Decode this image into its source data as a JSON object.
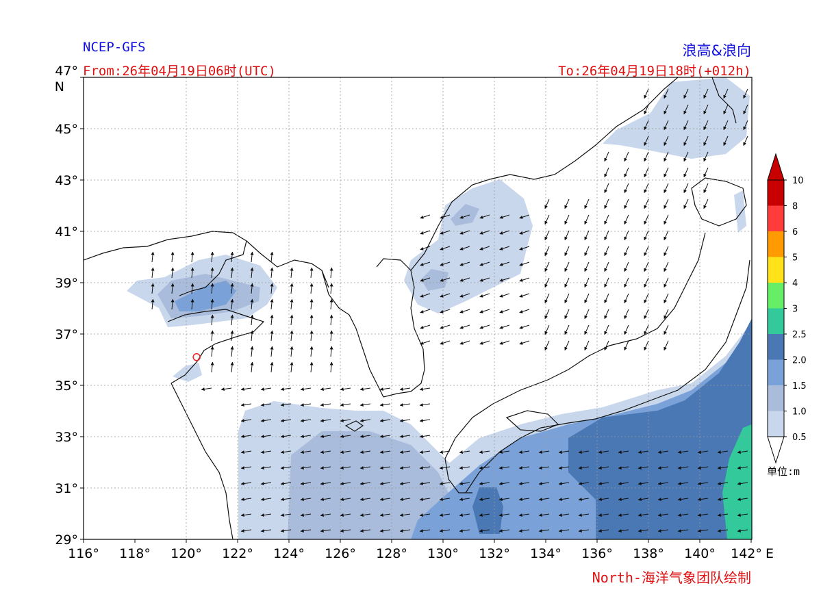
{
  "header": {
    "model": "NCEP-GFS",
    "title": "浪高&浪向",
    "from": "From:26年04月19日06时(UTC)",
    "to": "To:26年04月19日18时(+012h)"
  },
  "footer": {
    "credit": "North-海洋气象团队绘制"
  },
  "lat_ticks": [
    "47°",
    "45°",
    "43°",
    "41°",
    "39°",
    "37°",
    "35°",
    "33°",
    "31°",
    "29°"
  ],
  "lat_unit": "N",
  "lon_ticks": [
    "116°",
    "118°",
    "120°",
    "122°",
    "124°",
    "126°",
    "128°",
    "130°",
    "132°",
    "134°",
    "136°",
    "138°",
    "140°",
    "142°"
  ],
  "lon_unit": "E",
  "colorbar": {
    "unit_label": "单位:m",
    "levels": [
      "0.5",
      "1.0",
      "1.5",
      "2.0",
      "2.5",
      "3",
      "4",
      "5",
      "6",
      "8",
      "10"
    ],
    "colors": [
      "#ffffff",
      "#c9d7ec",
      "#aabcdb",
      "#7aa2d8",
      "#4a78b5",
      "#33c99a",
      "#66ee66",
      "#ffe21a",
      "#ff9a00",
      "#ff3c3c",
      "#c80000"
    ]
  },
  "map": {
    "lon_range": [
      116,
      142
    ],
    "lat_range": [
      29,
      47
    ],
    "gridlines": true,
    "marker": {
      "lon": 120.4,
      "lat": 36.1,
      "color": "#ee2222"
    }
  }
}
